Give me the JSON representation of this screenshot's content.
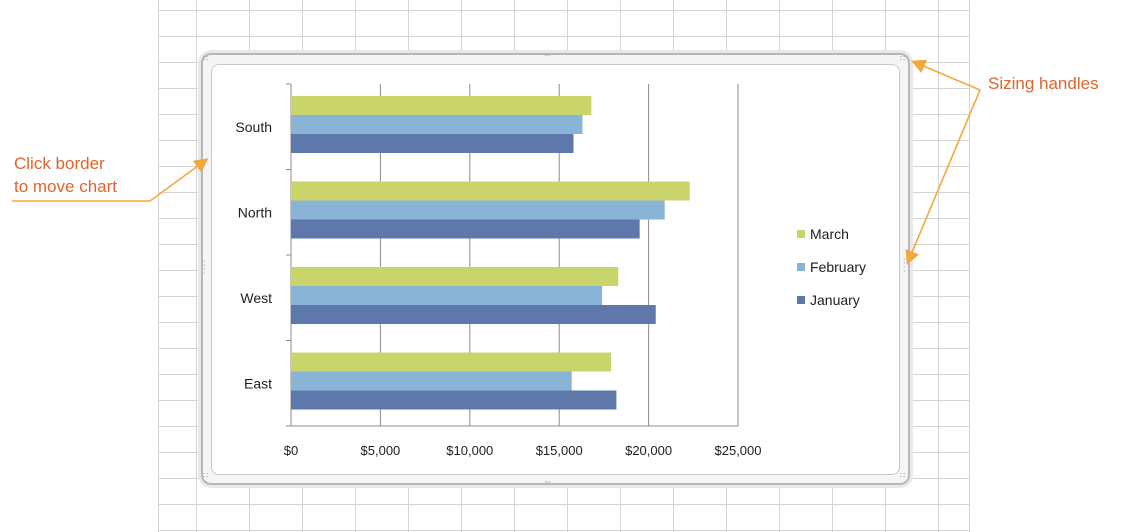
{
  "callouts": {
    "move_line1": "Click border",
    "move_line2": "to move chart",
    "sizing": "Sizing handles"
  },
  "colors": {
    "callout": "#e0642b",
    "march": "#c9d46b",
    "february": "#8ab4d6",
    "january": "#5f78ac"
  },
  "chart_data": {
    "type": "bar",
    "orientation": "horizontal",
    "categories": [
      "South",
      "North",
      "West",
      "East"
    ],
    "series": [
      {
        "name": "March",
        "values": [
          16800,
          22300,
          18300,
          17900
        ],
        "color": "#c9d46b"
      },
      {
        "name": "February",
        "values": [
          16300,
          20900,
          17400,
          15700
        ],
        "color": "#8ab4d6"
      },
      {
        "name": "January",
        "values": [
          15800,
          19500,
          20400,
          18200
        ],
        "color": "#5f78ac"
      }
    ],
    "legend_order": [
      "March",
      "February",
      "January"
    ],
    "x_ticks": [
      "$0",
      "$5,000",
      "$10,000",
      "$15,000",
      "$20,000",
      "$25,000"
    ],
    "x_tick_values": [
      0,
      5000,
      10000,
      15000,
      20000,
      25000
    ],
    "xlim": [
      0,
      25000
    ],
    "legend_position": "right",
    "grid": "vertical",
    "title": "",
    "xlabel": "",
    "ylabel": ""
  }
}
